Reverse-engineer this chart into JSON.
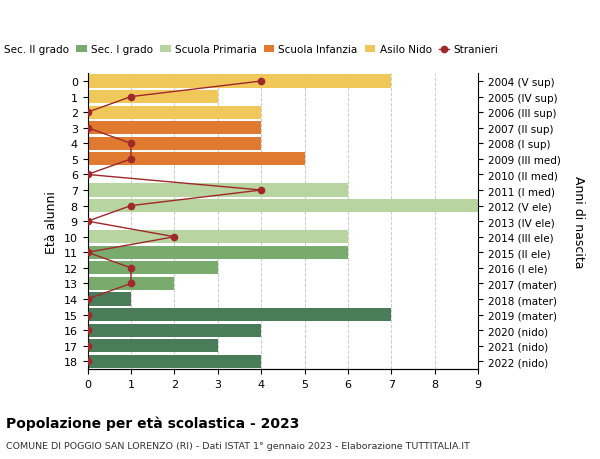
{
  "ages": [
    18,
    17,
    16,
    15,
    14,
    13,
    12,
    11,
    10,
    9,
    8,
    7,
    6,
    5,
    4,
    3,
    2,
    1,
    0
  ],
  "years": [
    "2004 (V sup)",
    "2005 (IV sup)",
    "2006 (III sup)",
    "2007 (II sup)",
    "2008 (I sup)",
    "2009 (III med)",
    "2010 (II med)",
    "2011 (I med)",
    "2012 (V ele)",
    "2013 (IV ele)",
    "2014 (III ele)",
    "2015 (II ele)",
    "2016 (I ele)",
    "2017 (mater)",
    "2018 (mater)",
    "2019 (mater)",
    "2020 (nido)",
    "2021 (nido)",
    "2022 (nido)"
  ],
  "bar_values": [
    4,
    3,
    4,
    7,
    1,
    2,
    3,
    6,
    6,
    0,
    9,
    6,
    0,
    5,
    4,
    4,
    4,
    3,
    7
  ],
  "bar_colors": [
    "#4a7c59",
    "#4a7c59",
    "#4a7c59",
    "#4a7c59",
    "#4a7c59",
    "#7aab6e",
    "#7aab6e",
    "#7aab6e",
    "#b8d4a0",
    "#b8d4a0",
    "#b8d4a0",
    "#b8d4a0",
    "#b8d4a0",
    "#e07a30",
    "#e07a30",
    "#e07a30",
    "#f0c85a",
    "#f0c85a",
    "#f0c85a"
  ],
  "stranieri_values": [
    0,
    0,
    0,
    0,
    0,
    1,
    1,
    0,
    2,
    0,
    1,
    4,
    0,
    1,
    1,
    0,
    0,
    1,
    4
  ],
  "stranieri_color": "#a0282a",
  "xlim": [
    0,
    9
  ],
  "ylabel_left": "Età alunni",
  "ylabel_right": "Anni di nascita",
  "title": "Popolazione per età scolastica - 2023",
  "subtitle": "COMUNE DI POGGIO SAN LORENZO (RI) - Dati ISTAT 1° gennaio 2023 - Elaborazione TUTTITALIA.IT",
  "legend_labels": [
    "Sec. II grado",
    "Sec. I grado",
    "Scuola Primaria",
    "Scuola Infanzia",
    "Asilo Nido",
    "Stranieri"
  ],
  "legend_colors": [
    "#4a7c59",
    "#7aab6e",
    "#b8d4a0",
    "#e07a30",
    "#f0c85a",
    "#a0282a"
  ],
  "bg_color": "#ffffff",
  "grid_color": "#cccccc"
}
